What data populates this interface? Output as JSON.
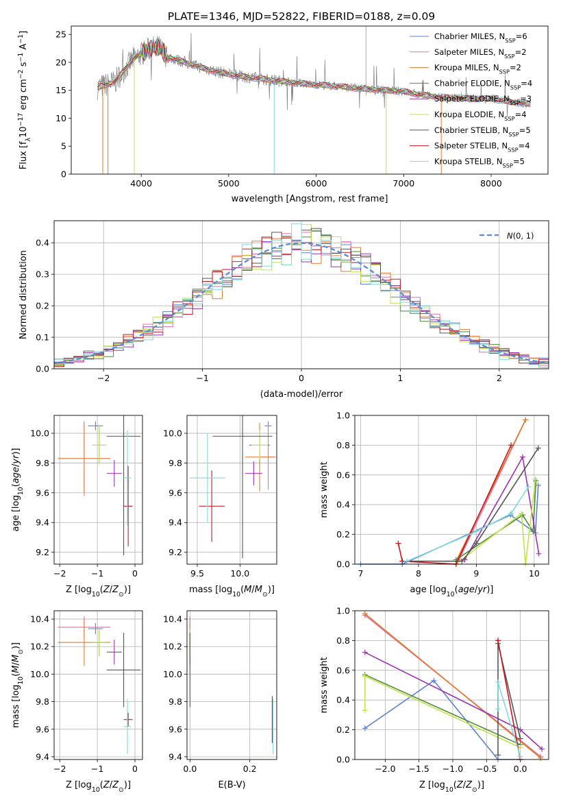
{
  "title": "PLATE=1346, MJD=52822, FIBERID=0188, z=0.09",
  "colors": {
    "chab_miles": "#5b7fd6",
    "salp_miles": "#e06fa8",
    "krou_miles": "#e07b2a",
    "chab_elodie": "#4e8a3a",
    "salp_elodie": "#9b30b0",
    "krou_elodie": "#c3e24a",
    "chab_stelib": "#555555",
    "salp_stelib": "#c8161d",
    "krou_stelib": "#7fd9e0",
    "data": "#7f7f7f",
    "gauss": "#5b8bd6"
  },
  "chart_data": [
    {
      "id": "spectrum",
      "type": "line",
      "xlabel": "wavelength [Angstrom, rest frame]",
      "ylabel": "Flux [f_λ10^-17 erg cm^-2 s^-1 A^-1]",
      "xlim": [
        3200,
        8650
      ],
      "ylim": [
        0,
        26.5
      ],
      "xticks": [
        4000,
        5000,
        6000,
        7000,
        8000
      ],
      "yticks": [
        0,
        5,
        10,
        15,
        20,
        25
      ],
      "legend_position": "upper right",
      "continuum": {
        "x": [
          3500,
          3700,
          3800,
          3900,
          4000,
          4100,
          4200,
          4300,
          4500,
          4700,
          4900,
          5100,
          5300,
          5500,
          5800,
          6000,
          6200,
          6500,
          6800,
          7000,
          7200,
          7400,
          7600,
          7800,
          8000,
          8200,
          8450
        ],
        "y": [
          15.5,
          16.5,
          18.5,
          20.5,
          21.5,
          22.5,
          22.7,
          21.0,
          20.0,
          19.0,
          18.2,
          17.6,
          17.2,
          16.8,
          16.3,
          16.0,
          15.8,
          15.3,
          15.0,
          14.8,
          14.2,
          13.8,
          13.6,
          13.5,
          13.5,
          13.0,
          12.5
        ]
      },
      "series": [
        {
          "name": "Chabrier MILES, N_SSP=6",
          "color_key": "chab_miles"
        },
        {
          "name": "Salpeter MILES, N_SSP=2",
          "color_key": "salp_miles"
        },
        {
          "name": "Kroupa MILES, N_SSP=2",
          "color_key": "krou_miles"
        },
        {
          "name": "Chabrier ELODIE, N_SSP=4",
          "color_key": "chab_elodie"
        },
        {
          "name": "Salpeter ELODIE, N_SSP=3",
          "color_key": "salp_elodie"
        },
        {
          "name": "Kroupa ELODIE, N_SSP=4",
          "color_key": "krou_elodie"
        },
        {
          "name": "Chabrier STELIB, N_SSP=5",
          "color_key": "chab_stelib"
        },
        {
          "name": "Salpeter STELIB, N_SSP=4",
          "color_key": "salp_stelib"
        },
        {
          "name": "Kroupa STELIB, N_SSP=5",
          "color_key": "krou_stelib"
        }
      ]
    },
    {
      "id": "residuals",
      "type": "line",
      "xlabel": "(data-model)/error",
      "ylabel": "Normed distribution",
      "xlim": [
        -2.5,
        2.5
      ],
      "ylim": [
        0,
        0.47
      ],
      "xticks": [
        -2,
        -1,
        0,
        1,
        2
      ],
      "yticks": [
        0.0,
        0.1,
        0.2,
        0.3,
        0.4
      ],
      "grid": true,
      "legend": "N(0,1)",
      "legend_position": "upper right"
    },
    {
      "id": "age_vs_Z",
      "type": "scatter",
      "xlabel": "Z [log10(Z/Z⊙)]",
      "ylabel": "age [log10(age/yr)]",
      "xlim": [
        -2.15,
        0.2
      ],
      "ylim": [
        9.12,
        10.12
      ],
      "xticks": [
        -2,
        -1,
        0
      ],
      "yticks": [
        9.2,
        9.4,
        9.6,
        9.8,
        10.0
      ],
      "grid": true,
      "points": [
        {
          "key": "chab_miles",
          "x": -1.05,
          "y": 10.05,
          "xerr": 0.2,
          "yerr": 0.03
        },
        {
          "key": "salp_miles",
          "x": -1.35,
          "y": 9.83,
          "xerr": 0.7,
          "yerr": 0.25
        },
        {
          "key": "krou_miles",
          "x": -1.35,
          "y": 9.83,
          "xerr": 0.7,
          "yerr": 0.23
        },
        {
          "key": "chab_elodie",
          "x": -0.95,
          "y": 9.92,
          "xerr": 0.18,
          "yerr": 0.12
        },
        {
          "key": "salp_elodie",
          "x": -0.55,
          "y": 9.73,
          "xerr": 0.2,
          "yerr": 0.09
        },
        {
          "key": "krou_elodie",
          "x": -0.95,
          "y": 9.92,
          "xerr": 0.18,
          "yerr": 0.13
        },
        {
          "key": "chab_stelib",
          "x": -0.3,
          "y": 9.98,
          "xerr": 0.45,
          "yerr": 0.8
        },
        {
          "key": "salp_stelib",
          "x": -0.18,
          "y": 9.51,
          "xerr": 0.12,
          "yerr": 0.27
        },
        {
          "key": "krou_stelib",
          "x": -0.2,
          "y": 9.7,
          "xerr": 0.1,
          "yerr": 0.32
        }
      ]
    },
    {
      "id": "age_vs_mass",
      "type": "scatter",
      "xlabel": "mass [log10(M/M⊙)]",
      "ylabel": "",
      "xlim": [
        9.38,
        10.43
      ],
      "ylim": [
        9.12,
        10.12
      ],
      "xticks": [
        9.5,
        10.0
      ],
      "yticks": [
        9.2,
        9.4,
        9.6,
        9.8,
        10.0
      ],
      "grid": true,
      "points": [
        {
          "key": "chab_miles",
          "x": 10.33,
          "y": 10.05,
          "xerr": 0.04,
          "yerr": 0.03
        },
        {
          "key": "salp_miles",
          "x": 10.33,
          "y": 9.84,
          "xerr": 0.09,
          "yerr": 0.22
        },
        {
          "key": "krou_miles",
          "x": 10.23,
          "y": 9.84,
          "xerr": 0.17,
          "yerr": 0.23
        },
        {
          "key": "chab_elodie",
          "x": 10.23,
          "y": 9.92,
          "xerr": 0.12,
          "yerr": 0.1
        },
        {
          "key": "salp_elodie",
          "x": 10.16,
          "y": 9.73,
          "xerr": 0.1,
          "yerr": 0.08
        },
        {
          "key": "krou_elodie",
          "x": 10.23,
          "y": 9.92,
          "xerr": 0.1,
          "yerr": 0.1
        },
        {
          "key": "chab_stelib",
          "x": 10.03,
          "y": 9.98,
          "xerr": 0.35,
          "yerr": 0.82
        },
        {
          "key": "salp_stelib",
          "x": 9.67,
          "y": 9.51,
          "xerr": 0.15,
          "yerr": 0.24
        },
        {
          "key": "krou_stelib",
          "x": 9.62,
          "y": 9.7,
          "xerr": 0.21,
          "yerr": 0.3
        }
      ]
    },
    {
      "id": "weight_vs_age",
      "type": "line",
      "xlabel": "age [log10(age/yr)]",
      "ylabel": "mass weight",
      "xlim": [
        6.9,
        10.25
      ],
      "ylim": [
        0,
        1.0
      ],
      "xticks": [
        7,
        8,
        9,
        10
      ],
      "yticks": [
        0.0,
        0.2,
        0.4,
        0.6,
        0.8,
        1.0
      ],
      "grid": true,
      "series": [
        {
          "key": "chab_miles",
          "x": [
            7.0,
            7.72,
            9.59,
            10.02,
            10.07
          ],
          "y": [
            0.0,
            0.0,
            0.33,
            0.21,
            0.53
          ]
        },
        {
          "key": "salp_miles",
          "x": [
            8.7,
            9.85
          ],
          "y": [
            0.03,
            0.97
          ]
        },
        {
          "key": "krou_miles",
          "x": [
            8.65,
            9.85
          ],
          "y": [
            0.02,
            0.97
          ]
        },
        {
          "key": "chab_elodie",
          "x": [
            8.65,
            9.8,
            9.98,
            10.03
          ],
          "y": [
            0.03,
            0.33,
            0.22,
            0.56
          ]
        },
        {
          "key": "salp_elodie",
          "x": [
            8.8,
            9.8,
            10.08
          ],
          "y": [
            0.03,
            0.72,
            0.07
          ]
        },
        {
          "key": "krou_elodie",
          "x": [
            8.65,
            9.78,
            9.85,
            10.02
          ],
          "y": [
            0.0,
            0.34,
            0.0,
            0.57
          ]
        },
        {
          "key": "chab_stelib",
          "x": [
            7.72,
            8.75,
            9.0,
            10.07
          ],
          "y": [
            0.02,
            0.02,
            0.14,
            0.78
          ]
        },
        {
          "key": "salp_stelib",
          "x": [
            7.65,
            7.72,
            8.65,
            9.6
          ],
          "y": [
            0.14,
            0.02,
            0.0,
            0.8
          ]
        },
        {
          "key": "krou_stelib",
          "x": [
            7.8,
            9.0,
            9.6,
            9.9
          ],
          "y": [
            0.02,
            0.22,
            0.34,
            0.52
          ]
        }
      ]
    },
    {
      "id": "mass_vs_Z",
      "type": "scatter",
      "xlabel": "Z [log10(Z/Z⊙)]",
      "ylabel": "mass [log10(M/M⊙)]",
      "xlim": [
        -2.15,
        0.2
      ],
      "ylim": [
        9.38,
        10.46
      ],
      "xticks": [
        -2,
        -1,
        0
      ],
      "yticks": [
        9.4,
        9.6,
        9.8,
        10.0,
        10.2,
        10.4
      ],
      "grid": true,
      "points": [
        {
          "key": "chab_miles",
          "x": -1.05,
          "y": 10.33,
          "xerr": 0.2,
          "yerr": 0.04
        },
        {
          "key": "salp_miles",
          "x": -1.35,
          "y": 10.34,
          "xerr": 0.7,
          "yerr": 0.08
        },
        {
          "key": "krou_miles",
          "x": -1.35,
          "y": 10.23,
          "xerr": 0.7,
          "yerr": 0.17
        },
        {
          "key": "chab_elodie",
          "x": -0.95,
          "y": 10.23,
          "xerr": 0.18,
          "yerr": 0.1
        },
        {
          "key": "salp_elodie",
          "x": -0.55,
          "y": 10.16,
          "xerr": 0.2,
          "yerr": 0.09
        },
        {
          "key": "krou_elodie",
          "x": -0.95,
          "y": 10.23,
          "xerr": 0.18,
          "yerr": 0.1
        },
        {
          "key": "chab_stelib",
          "x": -0.3,
          "y": 10.03,
          "xerr": 0.45,
          "yerr": 0.27
        },
        {
          "key": "salp_stelib",
          "x": -0.18,
          "y": 9.67,
          "xerr": 0.12,
          "yerr": 0.05
        },
        {
          "key": "krou_stelib",
          "x": -0.2,
          "y": 9.62,
          "xerr": 0.1,
          "yerr": 0.2
        }
      ]
    },
    {
      "id": "mass_vs_EBV",
      "type": "scatter",
      "xlabel": "E(B-V)",
      "ylabel": "",
      "xlim": [
        -0.01,
        0.29
      ],
      "ylim": [
        9.38,
        10.46
      ],
      "xticks": [
        0.0,
        0.2
      ],
      "yticks": [
        9.4,
        9.6,
        9.8,
        10.0,
        10.2,
        10.4
      ],
      "grid": true,
      "points": [
        {
          "key": "chab_miles",
          "x": 0.0,
          "y": 10.33,
          "xerr": 0.0,
          "yerr": 0.04
        },
        {
          "key": "salp_miles",
          "x": 0.0,
          "y": 10.34,
          "xerr": 0.0,
          "yerr": 0.08
        },
        {
          "key": "krou_miles",
          "x": 0.0,
          "y": 10.23,
          "xerr": 0.0,
          "yerr": 0.17
        },
        {
          "key": "chab_elodie",
          "x": 0.0,
          "y": 10.23,
          "xerr": 0.0,
          "yerr": 0.1
        },
        {
          "key": "salp_elodie",
          "x": 0.0,
          "y": 10.16,
          "xerr": 0.0,
          "yerr": 0.09
        },
        {
          "key": "krou_elodie",
          "x": 0.0,
          "y": 10.23,
          "xerr": 0.0,
          "yerr": 0.1
        },
        {
          "key": "chab_stelib",
          "x": 0.0,
          "y": 10.03,
          "xerr": 0.0,
          "yerr": 0.27
        },
        {
          "key": "salp_stelib",
          "x": 0.275,
          "y": 9.67,
          "xerr": 0.0,
          "yerr": 0.17
        },
        {
          "key": "krou_stelib",
          "x": 0.278,
          "y": 9.62,
          "xerr": 0.0,
          "yerr": 0.2
        }
      ]
    },
    {
      "id": "weight_vs_Z",
      "type": "line",
      "xlabel": "Z [log10(Z/Z⊙)]",
      "ylabel": "mass weight",
      "xlim": [
        -2.45,
        0.42
      ],
      "ylim": [
        0,
        1.0
      ],
      "xticks": [
        -2.0,
        -1.5,
        -1.0,
        -0.5,
        0.0
      ],
      "yticks": [
        0.0,
        0.2,
        0.4,
        0.6,
        0.8,
        1.0
      ],
      "grid": true,
      "series": [
        {
          "key": "chab_miles",
          "x": [
            -2.3,
            -1.28,
            -0.33,
            0.0
          ],
          "y": [
            0.21,
            0.53,
            0.0,
            0.0
          ]
        },
        {
          "key": "salp_miles",
          "x": [
            -2.3,
            0.3
          ],
          "y": [
            0.97,
            0.02
          ]
        },
        {
          "key": "krou_miles",
          "x": [
            -2.3,
            0.3
          ],
          "y": [
            0.98,
            0.01
          ]
        },
        {
          "key": "chab_elodie",
          "x": [
            -2.3,
            0.0
          ],
          "y": [
            0.57,
            0.1
          ]
        },
        {
          "key": "salp_elodie",
          "x": [
            -2.3,
            0.0,
            0.32
          ],
          "y": [
            0.72,
            0.2,
            0.07
          ]
        },
        {
          "key": "krou_elodie",
          "x": [
            -2.3,
            -2.3,
            0.0
          ],
          "y": [
            0.33,
            0.56,
            0.08
          ]
        },
        {
          "key": "chab_stelib",
          "x": [
            -0.33,
            -0.33,
            0.0
          ],
          "y": [
            0.03,
            0.78,
            0.14
          ]
        },
        {
          "key": "salp_stelib",
          "x": [
            -0.33,
            -0.33,
            0.0
          ],
          "y": [
            0.8,
            0.8,
            0.0
          ]
        },
        {
          "key": "krou_stelib",
          "x": [
            -0.33,
            -0.33,
            0.0
          ],
          "y": [
            0.34,
            0.52,
            0.02
          ]
        }
      ]
    }
  ]
}
